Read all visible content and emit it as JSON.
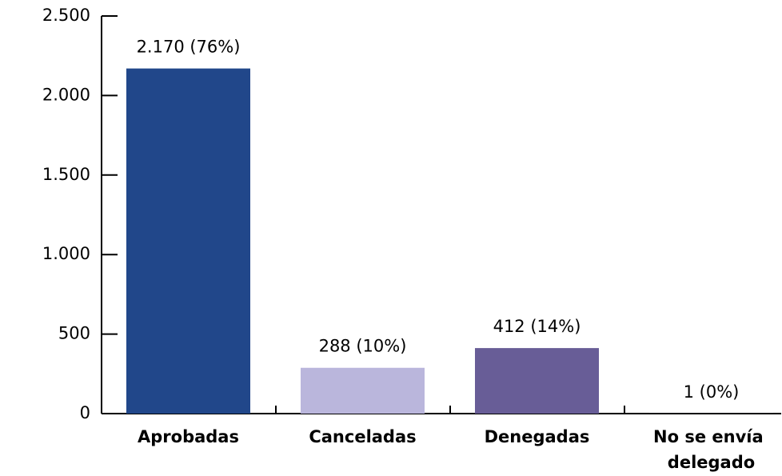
{
  "chart_data": {
    "type": "bar",
    "categories": [
      "Aprobadas",
      "Canceladas",
      "Denegadas",
      "No se envía delegado"
    ],
    "values": [
      2170,
      288,
      412,
      1
    ],
    "value_labels": [
      "2.170 (76%)",
      "288 (10%)",
      "412 (14%)",
      "1 (0%)"
    ],
    "colors": [
      "#21478a",
      "#bab6dc",
      "#685d97",
      "#685d97"
    ],
    "ylim": [
      0,
      2500
    ],
    "yticks": [
      0,
      {
        "value": 500,
        "label": "500"
      },
      {
        "value": 1000,
        "label": "1.000"
      },
      {
        "value": 1500,
        "label": "1.500"
      },
      {
        "value": 2000,
        "label": "2.000"
      },
      {
        "value": 2500,
        "label": "2.500"
      }
    ]
  }
}
